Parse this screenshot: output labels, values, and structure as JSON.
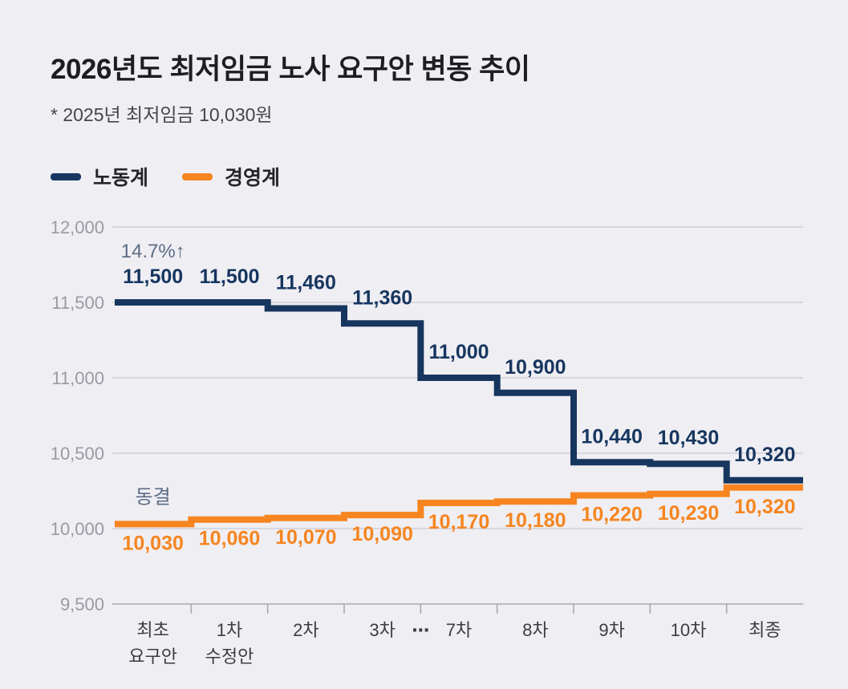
{
  "page": {
    "title": "2026년도 최저임금 노사 요구안 변동 추이",
    "subtitle": "* 2025년 최저임금 10,030원"
  },
  "chart_data": {
    "type": "line",
    "subtype": "step",
    "title": "2026년도 최저임금 노사 요구안 변동 추이",
    "note": "* 2025년 최저임금 10,030원",
    "legend_position": "top-left",
    "categories": [
      "최초\n요구안",
      "1차\n수정안",
      "2차",
      "3차",
      "7차",
      "8차",
      "9차",
      "10차",
      "최종"
    ],
    "gap_marker": {
      "label": "⋯",
      "after_category_index": 3
    },
    "y_axis": {
      "min": 9500,
      "max": 12000,
      "grid": true,
      "ticks": [
        {
          "value": 12000,
          "label": "12,000"
        },
        {
          "value": 11500,
          "label": "11,500"
        },
        {
          "value": 11000,
          "label": "11,000"
        },
        {
          "value": 10500,
          "label": "10,500"
        },
        {
          "value": 10000,
          "label": "10,000"
        },
        {
          "value": 9500,
          "label": "9,500"
        }
      ]
    },
    "series": [
      {
        "name": "노동계",
        "color": "#16365f",
        "label_position": "above",
        "annotation": "14.7%↑",
        "values": [
          11500,
          11500,
          11460,
          11360,
          11000,
          10900,
          10440,
          10430,
          10320
        ],
        "labels": [
          "11,500",
          "11,500",
          "11,460",
          "11,360",
          "11,000",
          "10,900",
          "10,440",
          "10,430",
          "10,320"
        ]
      },
      {
        "name": "경영계",
        "color": "#f6851f",
        "label_position": "below",
        "annotation": "동결",
        "values": [
          10030,
          10060,
          10070,
          10090,
          10170,
          10180,
          10220,
          10230,
          10320
        ],
        "labels": [
          "10,030",
          "10,060",
          "10,070",
          "10,090",
          "10,170",
          "10,180",
          "10,220",
          "10,230",
          "10,320"
        ]
      }
    ],
    "colors": {
      "background": "#efeef3",
      "grid": "#c9c8d1",
      "axis": "#a9a8b1",
      "tick_label": "#9b9aa3",
      "category_label": "#3c3c43",
      "annotation": "#5d6c85"
    }
  }
}
